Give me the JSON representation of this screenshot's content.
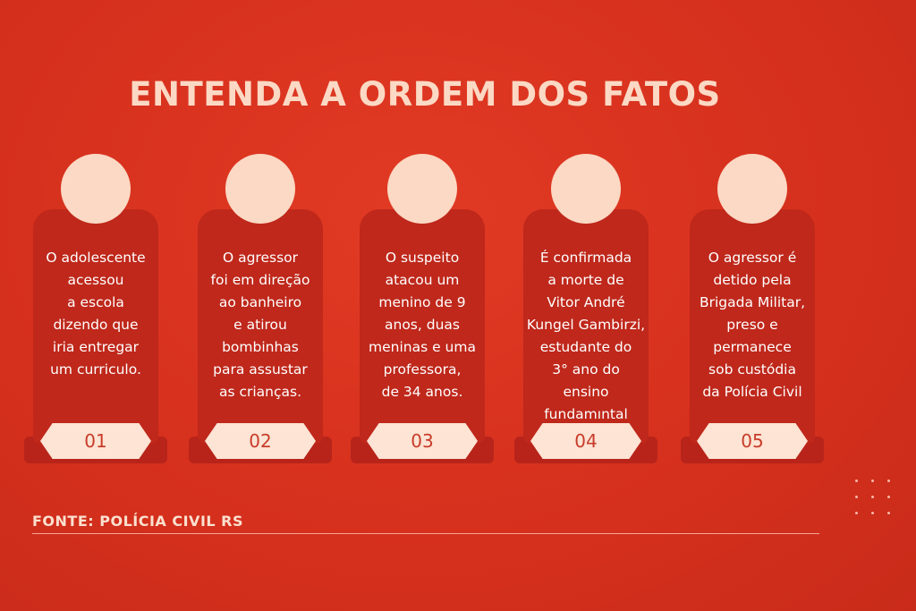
{
  "title": "ENTENDA A ORDEM DOS FATOS",
  "steps": [
    {
      "number": "01",
      "text": "O adolescente\nacessou\na escola\ndizendo que\niria entregar\num curriculo."
    },
    {
      "number": "02",
      "text": "O agressor\nfoi em direção\nao banheiro\ne atirou\nbombinhas\npara assustar\nas crianças."
    },
    {
      "number": "03",
      "text": "O suspeito\natacou um\nmenino de 9\nanos, duas\nmeninas e uma\nprofessora,\nde 34 anos."
    },
    {
      "number": "04",
      "text": "É confirmada\na morte de\nVitor André\nKungel Gambirzi,\nestudante do\n3° ano do\nensino fundamıntal"
    },
    {
      "number": "05",
      "text": "O agressor é\ndetido pela\nBrigada Militar,\npreso e\npermanece\nsob custódia\nda Polícia Civil"
    }
  ],
  "source": "FONTE: POLÍCIA CIVIL RS",
  "colors": {
    "background": "#d9321f",
    "card": "#bf281b",
    "head": "#fbd9c4",
    "badge": "#fde4d4",
    "badge_text": "#c93b2a"
  }
}
